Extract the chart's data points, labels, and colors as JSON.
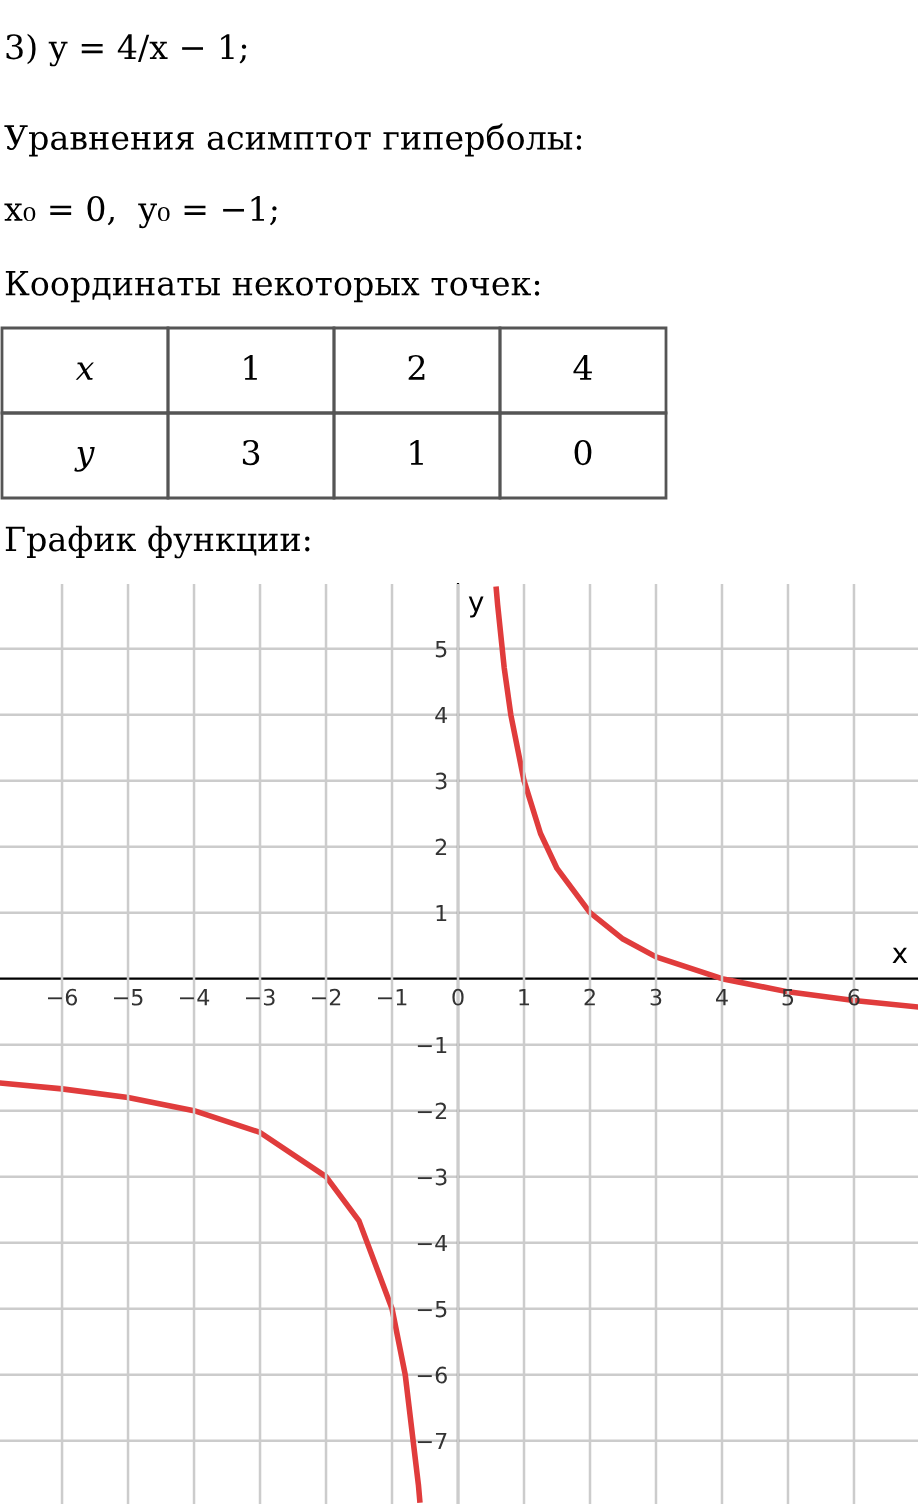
{
  "chart_data": {
    "type": "line",
    "title": "3) y = 4/x − 1;",
    "xlabel": "x",
    "ylabel": "y",
    "annotations": [
      "Уравнения асимптот гиперболы:",
      "x₀ = 0,  y₀ = −1;",
      "Координаты некоторых точек:",
      "x",
      "1",
      "2",
      "4",
      "y",
      "3",
      "1",
      "0",
      "График функции:"
    ],
    "series": [
      {
        "color": "#e03c3c",
        "x": [
          0.58,
          0.6,
          0.7,
          0.8,
          1,
          1.25,
          1.5,
          2,
          2.5,
          3,
          4,
          5,
          6,
          6.97
        ],
        "values": [
          5.9,
          5.67,
          4.71,
          4,
          3,
          2.2,
          1.67,
          1,
          0.6,
          0.33,
          0,
          -0.2,
          -0.33,
          -0.43
        ]
      },
      {
        "color": "#e03c3c",
        "x": [
          -6.94,
          -6,
          -5,
          -4,
          -3,
          -2,
          -1.5,
          -1,
          -0.8,
          -0.6,
          -0.58
        ],
        "values": [
          -1.58,
          -1.67,
          -1.8,
          -2,
          -2.33,
          -3,
          -3.67,
          -5,
          -6,
          -7.67,
          -7.9
        ]
      }
    ],
    "xlim": [
      -6.94,
      6.97
    ],
    "ylim": [
      -7.96,
      5.98
    ],
    "xticks": [
      {
        "value": -6,
        "label": "−6"
      },
      {
        "value": -5,
        "label": "−5"
      },
      {
        "value": -4,
        "label": "−4"
      },
      {
        "value": -3,
        "label": "−3"
      },
      {
        "value": -2,
        "label": "−2"
      },
      {
        "value": -1,
        "label": "−1"
      },
      0,
      1,
      2,
      3,
      4,
      5,
      6
    ],
    "yticks": [
      {
        "value": -7,
        "label": "−7"
      },
      {
        "value": -6,
        "label": "−6"
      },
      {
        "value": -5,
        "label": "−5"
      },
      {
        "value": -4,
        "label": "−4"
      },
      {
        "value": -3,
        "label": "−3"
      },
      {
        "value": -2,
        "label": "−2"
      },
      {
        "value": -1,
        "label": "−1"
      },
      1,
      2,
      3,
      4,
      5
    ],
    "grid": true,
    "line_style": "solid",
    "marker": "none"
  }
}
